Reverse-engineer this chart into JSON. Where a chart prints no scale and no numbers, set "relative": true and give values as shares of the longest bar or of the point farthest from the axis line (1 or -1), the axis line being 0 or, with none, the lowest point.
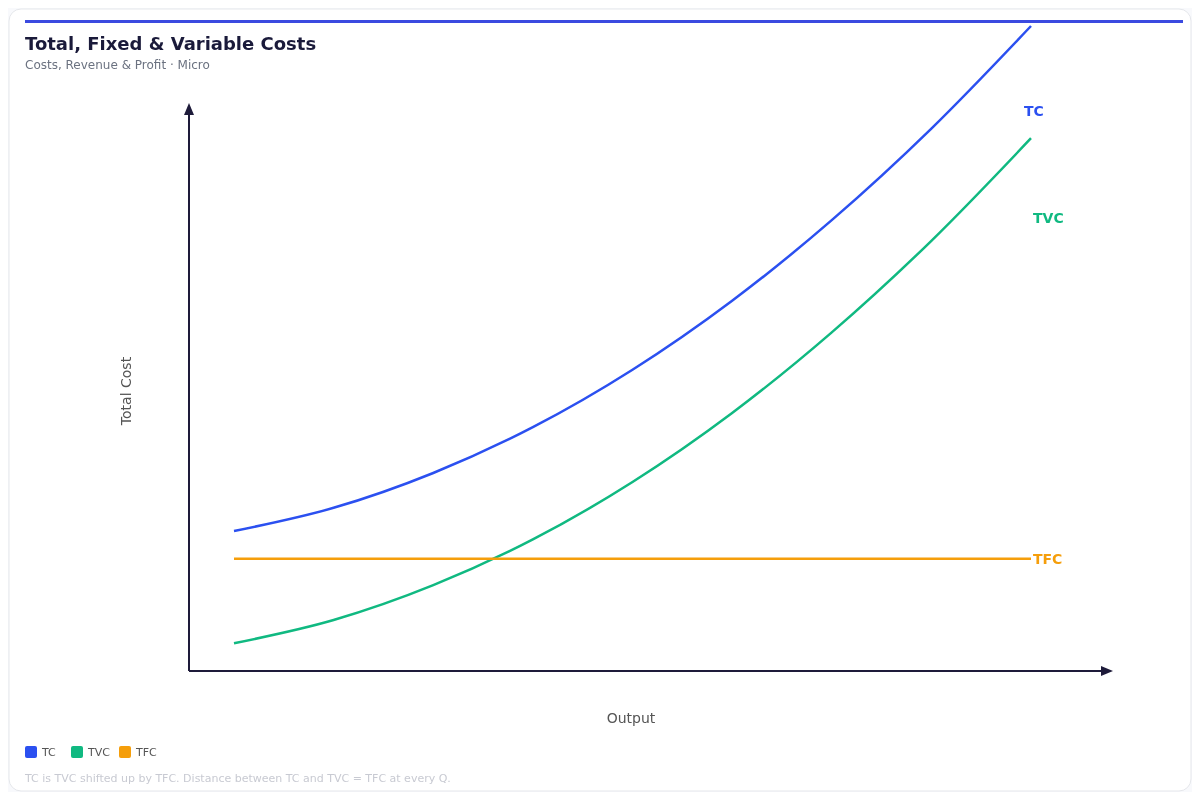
{
  "chart_data": {
    "type": "line",
    "title": "Total, Fixed & Variable Costs",
    "subtitle": "Costs, Revenue & Profit · Micro",
    "xlabel": "Output",
    "ylabel": "Total Cost",
    "relative": true,
    "categories": [
      null,
      null,
      null,
      null,
      null,
      null,
      null,
      null,
      null
    ],
    "series": [
      {
        "name": "TC",
        "color": "#2b50f0",
        "values": [
          0.217,
          0.253,
          0.307,
          0.378,
          0.467,
          0.574,
          0.699,
          0.841,
          1.0
        ]
      },
      {
        "name": "TVC",
        "color": "#10b981",
        "values": [
          0.043,
          0.079,
          0.133,
          0.204,
          0.293,
          0.4,
          0.525,
          0.667,
          0.826
        ]
      },
      {
        "name": "TFC",
        "color": "#f59e0b",
        "values": [
          0.174,
          0.174,
          0.174,
          0.174,
          0.174,
          0.174,
          0.174,
          0.174,
          0.174
        ]
      }
    ],
    "legend": "bottom left",
    "marker": "none",
    "line_style": "solid",
    "annotations": [
      "TC is TVC shifted up by TFC. Distance between TC and TVC = TFC at every Q."
    ]
  }
}
